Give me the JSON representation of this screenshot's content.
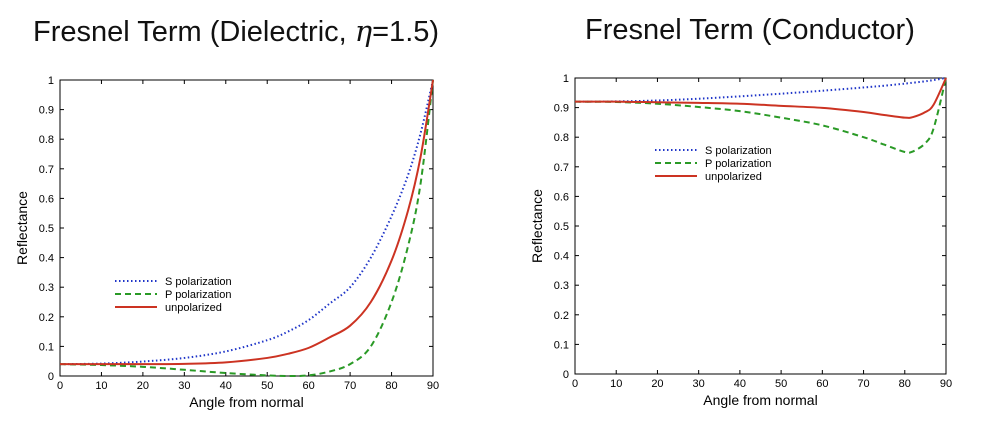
{
  "chart_data": [
    {
      "type": "line",
      "title_prefix": "Fresnel Term (Dielectric, ",
      "title_symbol": "η",
      "title_suffix": "=1.5)",
      "xlabel": "Angle from normal",
      "ylabel": "Reflectance",
      "xlim": [
        0,
        90
      ],
      "ylim": [
        0,
        1
      ],
      "xticks": [
        "0",
        "10",
        "20",
        "30",
        "40",
        "50",
        "60",
        "70",
        "80",
        "90"
      ],
      "yticks": [
        "0",
        "0.1",
        "0.2",
        "0.3",
        "0.4",
        "0.5",
        "0.6",
        "0.7",
        "0.8",
        "0.9",
        "1"
      ],
      "legend_position": "center-left",
      "x": [
        0,
        10,
        20,
        30,
        40,
        50,
        55,
        60,
        65,
        70,
        75,
        80,
        84,
        87,
        90
      ],
      "series": [
        {
          "name": "S polarization",
          "color": "#1f35c8",
          "style": "dotted",
          "values": [
            0.04,
            0.042,
            0.049,
            0.061,
            0.083,
            0.121,
            0.15,
            0.189,
            0.244,
            0.3,
            0.4,
            0.54,
            0.68,
            0.82,
            1.0
          ]
        },
        {
          "name": "P polarization",
          "color": "#2a9a26",
          "style": "dashed",
          "values": [
            0.04,
            0.037,
            0.031,
            0.021,
            0.01,
            0.002,
            0.0,
            0.002,
            0.015,
            0.04,
            0.1,
            0.25,
            0.44,
            0.65,
            1.0
          ]
        },
        {
          "name": "unpolarized",
          "color": "#cc3322",
          "style": "solid",
          "values": [
            0.04,
            0.04,
            0.04,
            0.041,
            0.046,
            0.061,
            0.075,
            0.095,
            0.13,
            0.17,
            0.25,
            0.39,
            0.56,
            0.74,
            1.0
          ]
        }
      ]
    },
    {
      "type": "line",
      "title_prefix": "Fresnel Term (Conductor)",
      "title_symbol": "",
      "title_suffix": "",
      "xlabel": "Angle from normal",
      "ylabel": "Reflectance",
      "xlim": [
        0,
        90
      ],
      "ylim": [
        0,
        1
      ],
      "xticks": [
        "0",
        "10",
        "20",
        "30",
        "40",
        "50",
        "60",
        "70",
        "80",
        "90"
      ],
      "yticks": [
        "0",
        "0.1",
        "0.2",
        "0.3",
        "0.4",
        "0.5",
        "0.6",
        "0.7",
        "0.8",
        "0.9",
        "1"
      ],
      "legend_position": "upper-center",
      "x": [
        0,
        10,
        20,
        30,
        40,
        50,
        60,
        70,
        75,
        80,
        82,
        85,
        87,
        90
      ],
      "series": [
        {
          "name": "S polarization",
          "color": "#1f35c8",
          "style": "dotted",
          "values": [
            0.92,
            0.921,
            0.924,
            0.93,
            0.938,
            0.947,
            0.957,
            0.968,
            0.974,
            0.981,
            0.984,
            0.989,
            0.993,
            1.0
          ]
        },
        {
          "name": "P polarization",
          "color": "#2a9a26",
          "style": "dashed",
          "values": [
            0.92,
            0.919,
            0.913,
            0.902,
            0.888,
            0.866,
            0.84,
            0.8,
            0.775,
            0.75,
            0.752,
            0.78,
            0.83,
            1.0
          ]
        },
        {
          "name": "unpolarized",
          "color": "#cc3322",
          "style": "solid",
          "values": [
            0.92,
            0.92,
            0.918,
            0.916,
            0.913,
            0.906,
            0.899,
            0.885,
            0.875,
            0.866,
            0.868,
            0.885,
            0.91,
            1.0
          ]
        }
      ]
    }
  ]
}
